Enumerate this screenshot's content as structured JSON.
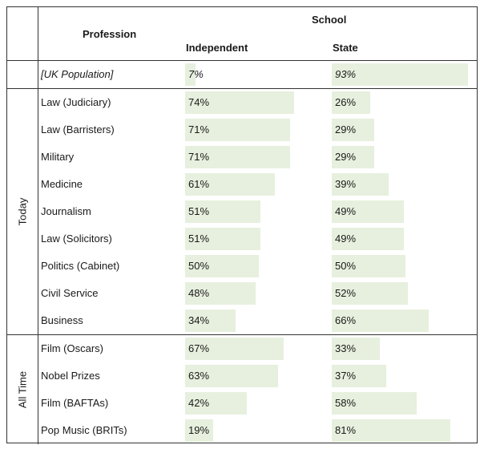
{
  "header": {
    "profession": "Profession",
    "school": "School",
    "independent": "Independent",
    "state": "State"
  },
  "bar_color": "#e7f0de",
  "baseline": {
    "profession": "[UK Population]",
    "independent": "7%",
    "state": "93%",
    "independent_value": 7,
    "state_value": 93
  },
  "groups": [
    {
      "label": "Today",
      "rows": [
        {
          "profession": "Law (Judiciary)",
          "independent": "74%",
          "state": "26%",
          "independent_value": 74,
          "state_value": 26
        },
        {
          "profession": "Law (Barristers)",
          "independent": "71%",
          "state": "29%",
          "independent_value": 71,
          "state_value": 29
        },
        {
          "profession": "Military",
          "independent": "71%",
          "state": "29%",
          "independent_value": 71,
          "state_value": 29
        },
        {
          "profession": "Medicine",
          "independent": "61%",
          "state": "39%",
          "independent_value": 61,
          "state_value": 39
        },
        {
          "profession": "Journalism",
          "independent": "51%",
          "state": "49%",
          "independent_value": 51,
          "state_value": 49
        },
        {
          "profession": "Law (Solicitors)",
          "independent": "51%",
          "state": "49%",
          "independent_value": 51,
          "state_value": 49
        },
        {
          "profession": "Politics (Cabinet)",
          "independent": "50%",
          "state": "50%",
          "independent_value": 50,
          "state_value": 50
        },
        {
          "profession": "Civil Service",
          "independent": "48%",
          "state": "52%",
          "independent_value": 48,
          "state_value": 52
        },
        {
          "profession": "Business",
          "independent": "34%",
          "state": "66%",
          "independent_value": 34,
          "state_value": 66
        }
      ]
    },
    {
      "label": "All Time",
      "rows": [
        {
          "profession": "Film (Oscars)",
          "independent": "67%",
          "state": "33%",
          "independent_value": 67,
          "state_value": 33
        },
        {
          "profession": "Nobel Prizes",
          "independent": "63%",
          "state": "37%",
          "independent_value": 63,
          "state_value": 37
        },
        {
          "profession": "Film (BAFTAs)",
          "independent": "42%",
          "state": "58%",
          "independent_value": 42,
          "state_value": 58
        },
        {
          "profession": "Pop Music (BRITs)",
          "independent": "19%",
          "state": "81%",
          "independent_value": 19,
          "state_value": 81
        }
      ]
    }
  ]
}
